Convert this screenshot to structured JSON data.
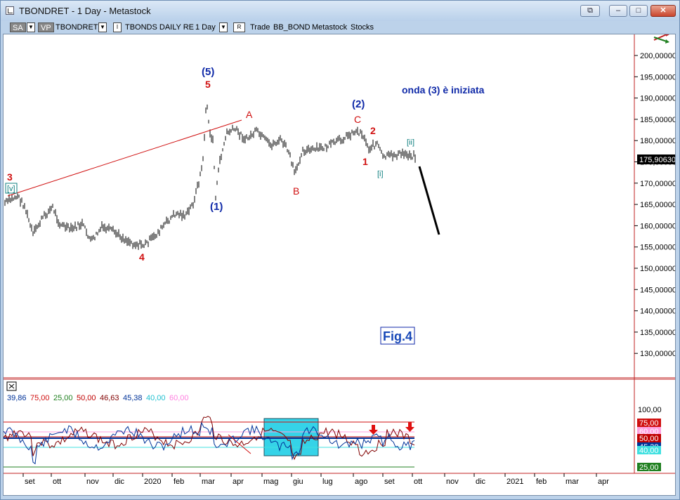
{
  "window": {
    "title": "TBONDRET - 1 Day - Metastock",
    "controls": {
      "restore_down": "⧉",
      "minimize": "–",
      "maximize": "□",
      "close": "✕"
    }
  },
  "toolbar": {
    "sa_label": "SA",
    "vp_label": "VP",
    "symbol": "TBONDRET",
    "i_label": "I",
    "security_name": "TBONDS DAILY RE",
    "period": "1 Day",
    "r_label": "R",
    "trade_label": "Trade",
    "broker": "BB_BOND",
    "app_label": "Metastock",
    "stocks_label": "Stocks"
  },
  "icons": {
    "chart_arrows": "trend-arrows-icon",
    "close_indicator": "close-box-icon"
  },
  "colors": {
    "price": "#000000",
    "trendline": "#d01010",
    "wave_red": "#d01010",
    "wave_blue": "#102aa8",
    "wave_teal": "#108080",
    "highlight": "#35d3e8",
    "level_75": "#d01010",
    "level_60": "#ffa0e0",
    "level_50": "#c00000",
    "level_45": "#003399",
    "level_40": "#40e0e0",
    "level_25": "#208020"
  },
  "price_axis": {
    "ticks": [
      "200,00000",
      "195,00000",
      "190,00000",
      "185,00000",
      "180,00000",
      "175,00000",
      "170,00000",
      "165,00000",
      "160,00000",
      "155,00000",
      "150,00000",
      "145,00000",
      "140,00000",
      "135,00000",
      "130,00000"
    ],
    "last_value": "175,90630"
  },
  "annotations": {
    "comment": "onda (3) è iniziata",
    "fig_label": "Fig.4",
    "waves": {
      "w3": "3",
      "wv": "[v]",
      "w4": "4",
      "w5": "5",
      "w5b": "(5)",
      "w1b": "(1)",
      "wA": "A",
      "wB": "B",
      "wC": "C",
      "w2b": "(2)",
      "w2": "2",
      "w1": "1",
      "wi": "[i]",
      "wii": "[ii]"
    }
  },
  "indicator": {
    "values": [
      {
        "label": "39,86",
        "color": "#003399"
      },
      {
        "label": "75,00",
        "color": "#d01010"
      },
      {
        "label": "25,00",
        "color": "#208020"
      },
      {
        "label": "50,00",
        "color": "#c00000"
      },
      {
        "label": "46,63",
        "color": "#800000"
      },
      {
        "label": "45,38",
        "color": "#003399"
      },
      {
        "label": "40,00",
        "color": "#20c0d0"
      },
      {
        "label": "60,00",
        "color": "#ff80e0"
      }
    ],
    "axis_top": "100,00",
    "badges": [
      {
        "label": "75,00",
        "bg": "#d01010",
        "fg": "#ffffff"
      },
      {
        "label": "60,00",
        "bg": "#ffa0e0",
        "fg": "#ffffff"
      },
      {
        "label": "50,00",
        "bg": "#c00000",
        "fg": "#ffffff"
      },
      {
        "label": "45,38",
        "bg": "#003399",
        "fg": "#ffffff"
      },
      {
        "label": "40,00",
        "bg": "#40e0e0",
        "fg": "#ffffff"
      },
      {
        "label": "25,00",
        "bg": "#208020",
        "fg": "#ffffff"
      }
    ]
  },
  "time_axis": {
    "labels": [
      "set",
      "ott",
      "nov",
      "dic",
      "2020",
      "feb",
      "mar",
      "apr",
      "mag",
      "giu",
      "lug",
      "ago",
      "set",
      "ott",
      "nov",
      "dic",
      "2021",
      "feb",
      "mar",
      "apr"
    ]
  }
}
